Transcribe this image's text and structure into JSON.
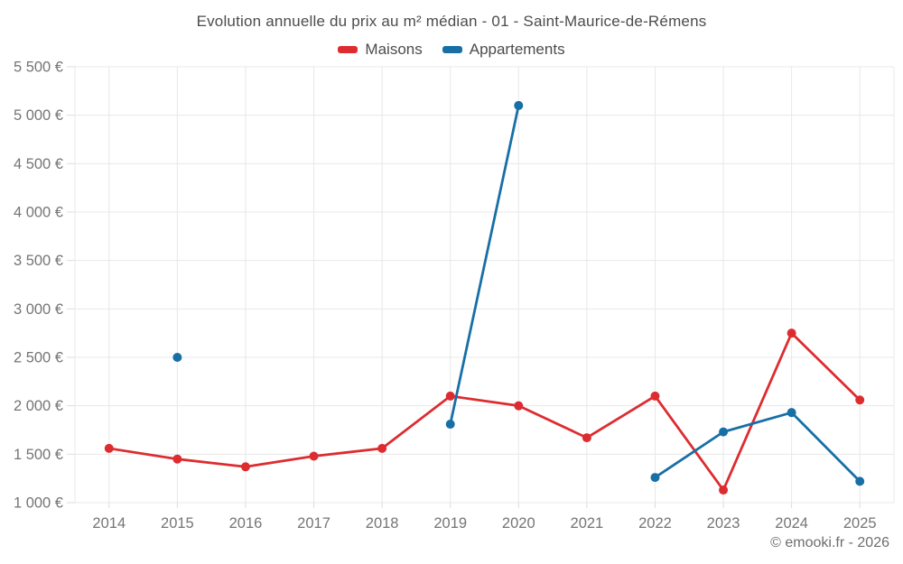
{
  "header": {
    "title": "Evolution annuelle du prix au m² médian - 01 - Saint-Maurice-de-Rémens"
  },
  "legend": {
    "items": [
      {
        "label": "Maisons",
        "color": "#dd2c30"
      },
      {
        "label": "Appartements",
        "color": "#176fa5"
      }
    ]
  },
  "footer": {
    "credit": "© emooki.fr - 2026"
  },
  "chart_data": {
    "type": "line",
    "title": "Evolution annuelle du prix au m² médian - 01 - Saint-Maurice-de-Rémens",
    "categories": [
      "2014",
      "2015",
      "2016",
      "2017",
      "2018",
      "2019",
      "2020",
      "2021",
      "2022",
      "2023",
      "2024",
      "2025"
    ],
    "series": [
      {
        "name": "Maisons",
        "color": "#dd2c30",
        "values": [
          1560,
          1450,
          1370,
          1480,
          1560,
          2100,
          2000,
          1670,
          2100,
          1130,
          2750,
          2060
        ]
      },
      {
        "name": "Appartements",
        "color": "#176fa5",
        "values": [
          null,
          2500,
          null,
          null,
          null,
          1810,
          5100,
          null,
          1260,
          1730,
          1930,
          1220
        ]
      }
    ],
    "xlabel": "",
    "ylabel": "",
    "ylim": [
      1000,
      5500
    ],
    "y_tick_step": 500,
    "y_tick_suffix": " €",
    "grid": true,
    "legend_position": "top",
    "colors": {
      "grid": "#e8e8e8",
      "axis_tick": "#dcdcdc",
      "tick_label": "#757575"
    }
  }
}
